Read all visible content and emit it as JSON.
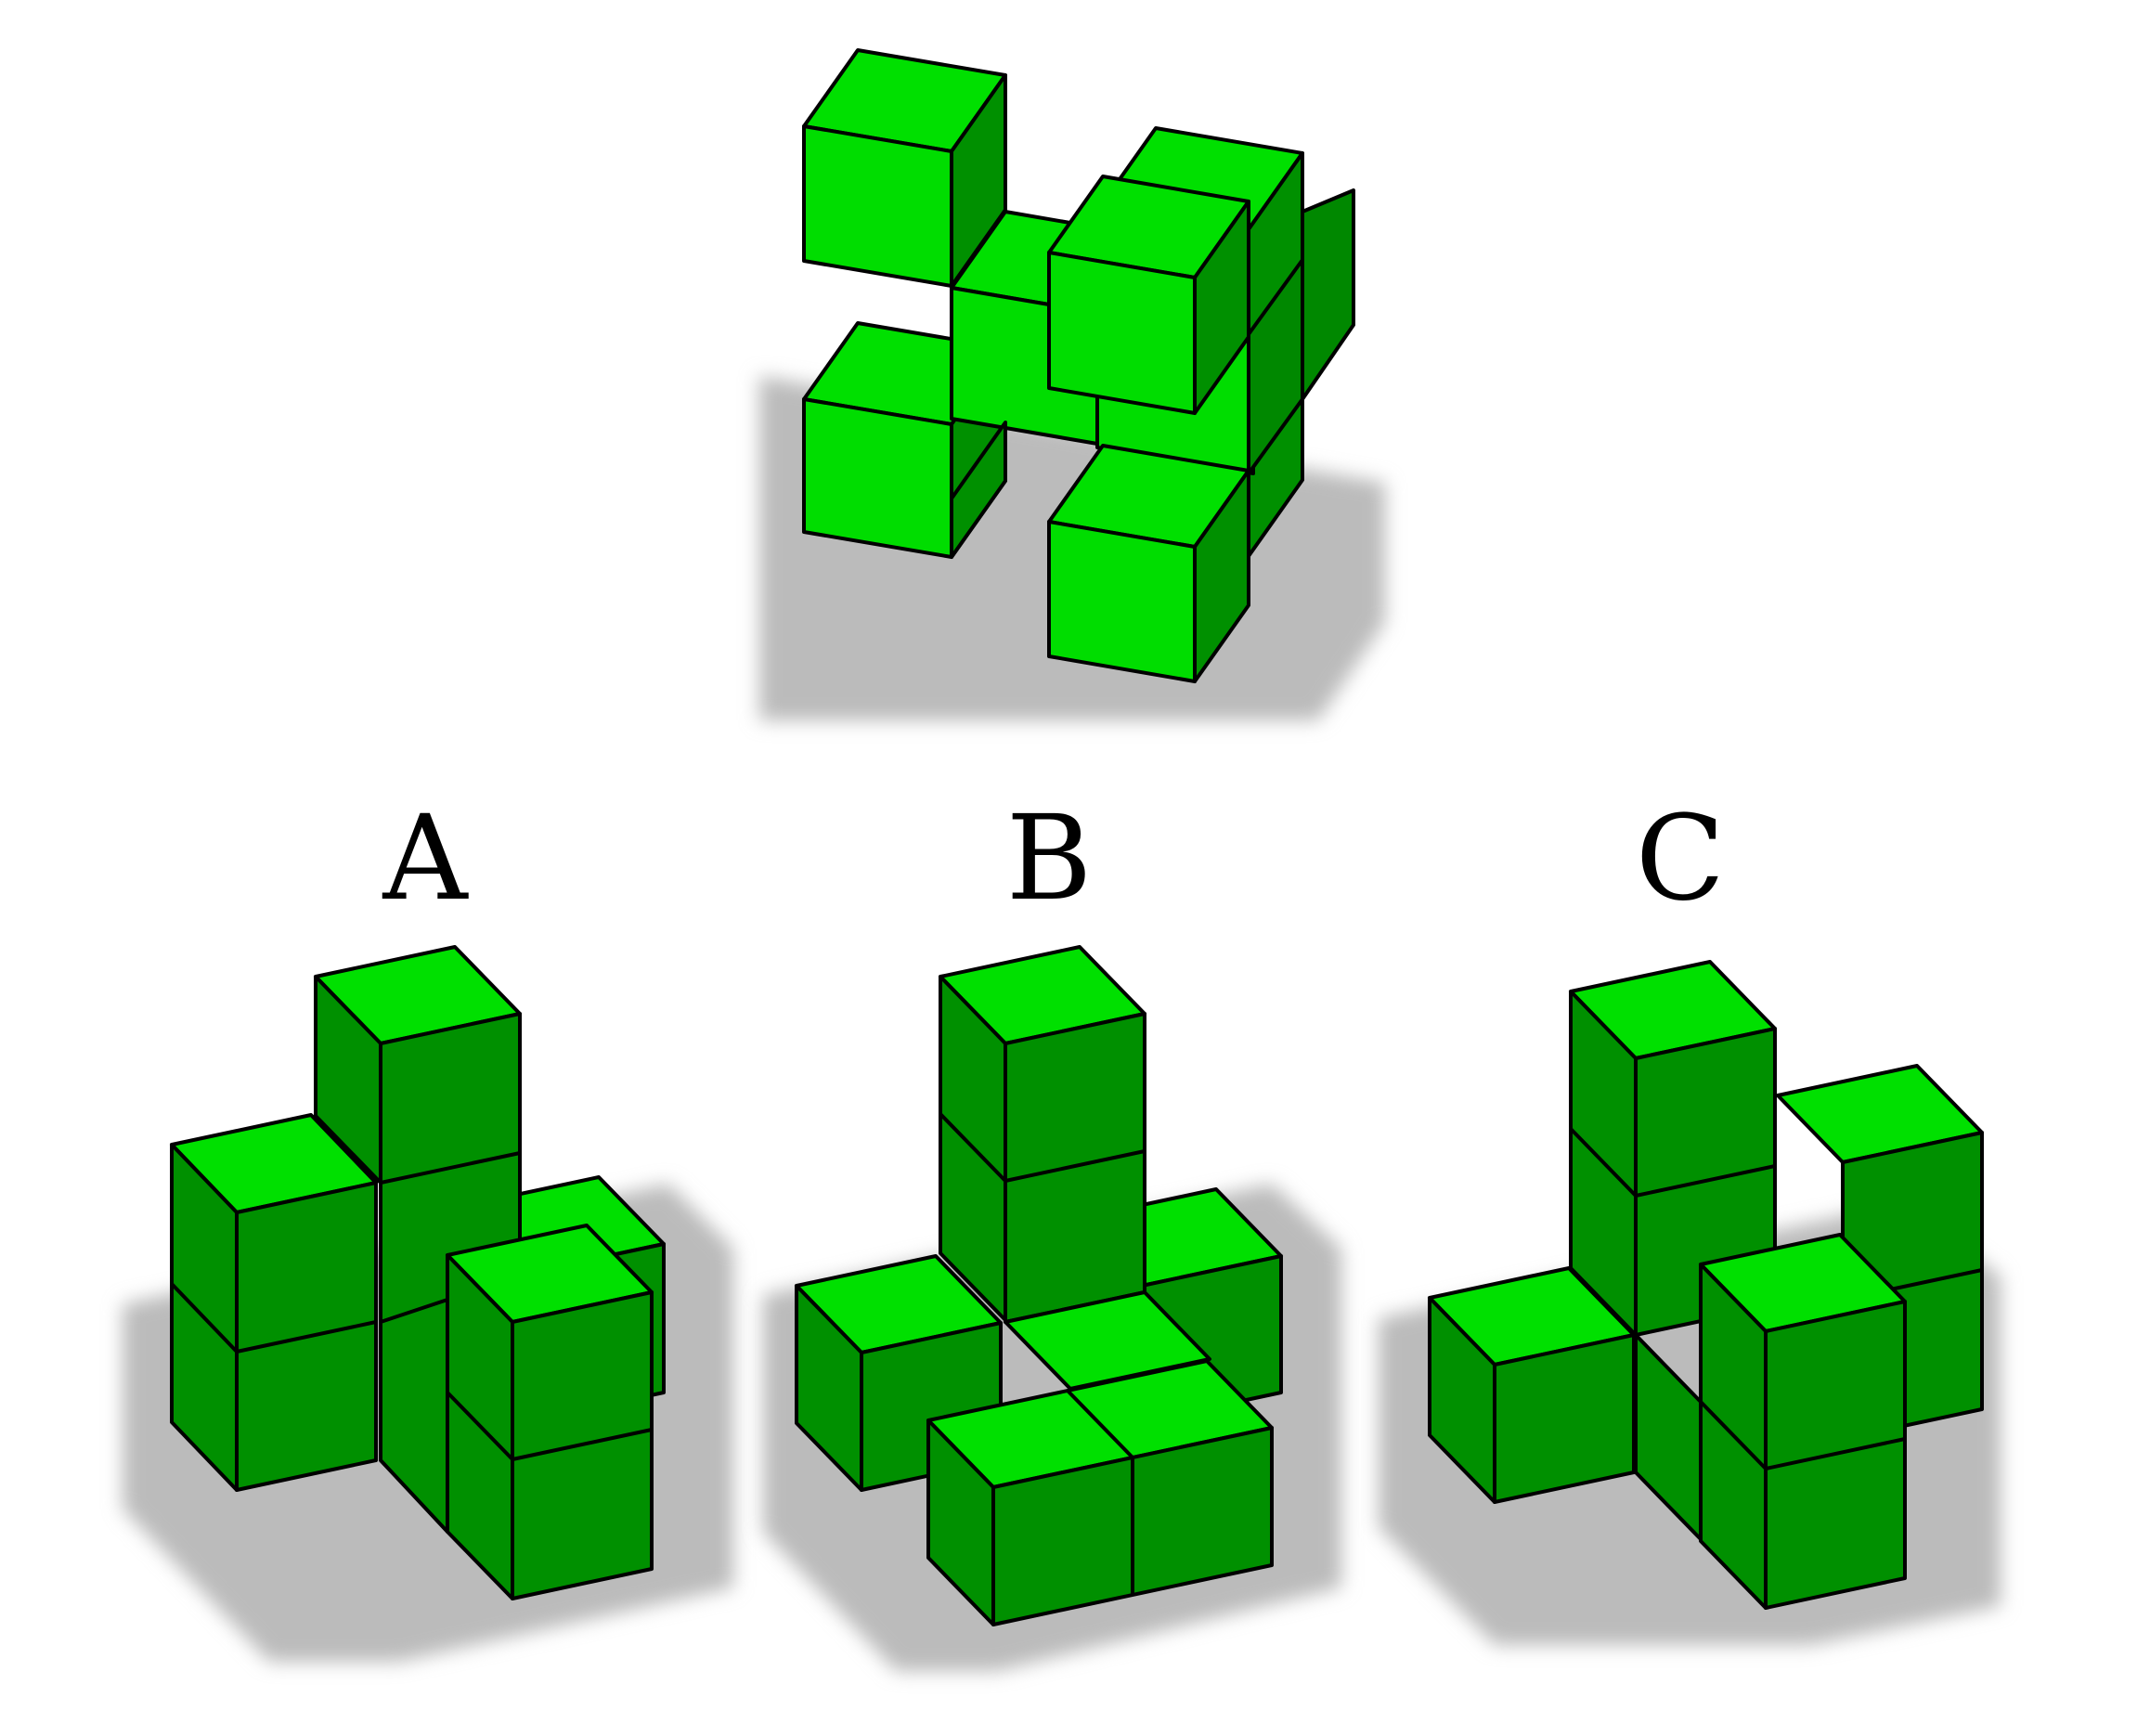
{
  "colors": {
    "background": "#ffffff",
    "cube_top": "#00e000",
    "cube_front": "#00dd00",
    "cube_side": "#009000",
    "cube_side_dark": "#008800",
    "edge": "#000000",
    "shadow": "#bbbbbb"
  },
  "figures": [
    {
      "id": "reference",
      "label": ""
    },
    {
      "id": "option-a",
      "label": "A"
    },
    {
      "id": "option-b",
      "label": "B"
    },
    {
      "id": "option-c",
      "label": "C"
    }
  ]
}
